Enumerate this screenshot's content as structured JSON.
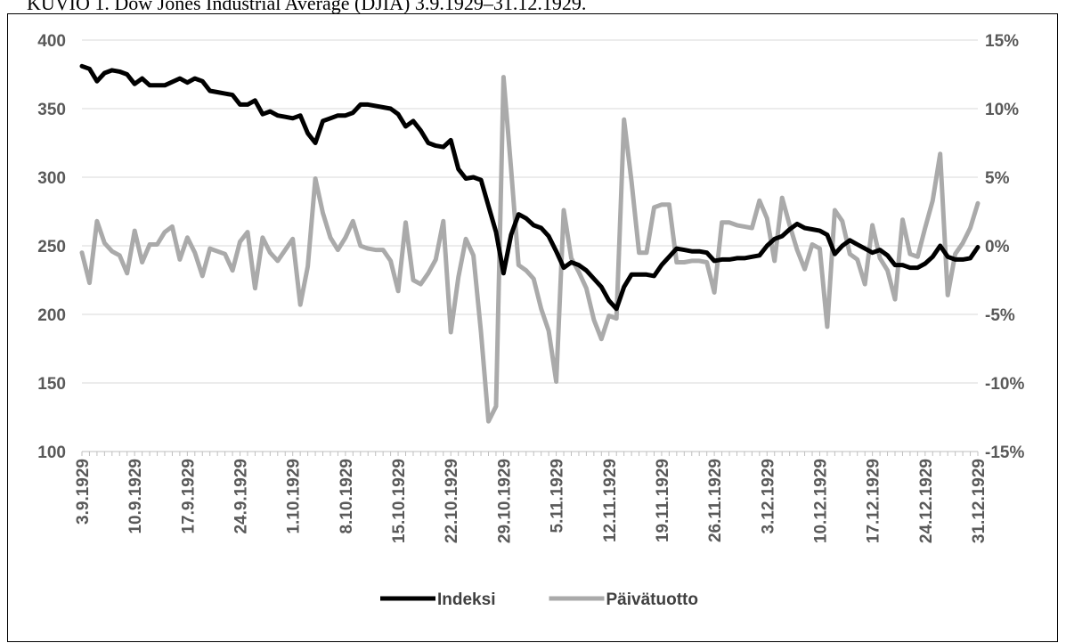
{
  "caption": "KUVIO 1. Dow Jones Industrial Average (DJIA) 3.9.1929–31.12.1929.",
  "chart_data": {
    "type": "line",
    "title": "",
    "xlabel": "",
    "ylabel": "",
    "y_left_ticks": [
      "400",
      "350",
      "300",
      "250",
      "200",
      "150",
      "100"
    ],
    "y_left_lim": [
      100,
      400
    ],
    "y_right_ticks": [
      "15%",
      "10%",
      "5%",
      "0%",
      "-5%",
      "-10%",
      "-15%"
    ],
    "y_right_lim": [
      -15,
      15
    ],
    "x_range": [
      0,
      119
    ],
    "x_ticks": [
      {
        "label": "3.9.1929",
        "x": 0
      },
      {
        "label": "10.9.1929",
        "x": 7
      },
      {
        "label": "17.9.1929",
        "x": 14
      },
      {
        "label": "24.9.1929",
        "x": 21
      },
      {
        "label": "1.10.1929",
        "x": 28
      },
      {
        "label": "8.10.1929",
        "x": 35
      },
      {
        "label": "15.10.1929",
        "x": 42
      },
      {
        "label": "22.10.1929",
        "x": 49
      },
      {
        "label": "29.10.1929",
        "x": 56
      },
      {
        "label": "5.11.1929",
        "x": 63
      },
      {
        "label": "12.11.1929",
        "x": 70
      },
      {
        "label": "19.11.1929",
        "x": 77
      },
      {
        "label": "26.11.1929",
        "x": 84
      },
      {
        "label": "3.12.1929",
        "x": 91
      },
      {
        "label": "10.12.1929",
        "x": 98
      },
      {
        "label": "17.12.1929",
        "x": 105
      },
      {
        "label": "24.12.1929",
        "x": 112
      },
      {
        "label": "31.12.1929",
        "x": 119
      }
    ],
    "grid": true,
    "legend_position": "bottom",
    "series": [
      {
        "name": "Indeksi",
        "axis": "left",
        "color": "#000000",
        "points": [
          [
            0,
            381
          ],
          [
            1,
            379
          ],
          [
            2,
            370
          ],
          [
            3,
            376
          ],
          [
            4,
            378
          ],
          [
            5,
            377
          ],
          [
            6,
            375
          ],
          [
            7,
            368
          ],
          [
            8,
            372
          ],
          [
            9,
            367
          ],
          [
            10,
            367
          ],
          [
            11,
            367
          ],
          [
            13,
            372
          ],
          [
            14,
            369
          ],
          [
            15,
            372
          ],
          [
            16,
            370
          ],
          [
            17,
            363
          ],
          [
            18,
            362
          ],
          [
            20,
            360
          ],
          [
            21,
            353
          ],
          [
            22,
            353
          ],
          [
            23,
            356
          ],
          [
            24,
            346
          ],
          [
            25,
            348
          ],
          [
            26,
            345
          ],
          [
            27,
            344
          ],
          [
            28,
            343
          ],
          [
            29,
            345
          ],
          [
            30,
            332
          ],
          [
            31,
            325
          ],
          [
            32,
            341
          ],
          [
            33,
            343
          ],
          [
            34,
            345
          ],
          [
            35,
            345
          ],
          [
            36,
            347
          ],
          [
            37,
            353
          ],
          [
            38,
            353
          ],
          [
            39,
            352
          ],
          [
            40,
            351
          ],
          [
            41,
            350
          ],
          [
            42,
            346
          ],
          [
            43,
            337
          ],
          [
            44,
            341
          ],
          [
            45,
            334
          ],
          [
            46,
            325
          ],
          [
            47,
            323
          ],
          [
            48,
            322
          ],
          [
            49,
            327
          ],
          [
            50,
            306
          ],
          [
            51,
            299
          ],
          [
            52,
            300
          ],
          [
            53,
            298
          ],
          [
            54,
            279
          ],
          [
            55,
            260
          ],
          [
            56,
            230
          ],
          [
            57,
            258
          ],
          [
            58,
            273
          ],
          [
            59,
            270
          ],
          [
            60,
            265
          ],
          [
            61,
            263
          ],
          [
            62,
            257
          ],
          [
            63,
            246
          ],
          [
            64,
            234
          ],
          [
            65,
            238
          ],
          [
            66,
            236
          ],
          [
            67,
            232
          ],
          [
            68,
            226
          ],
          [
            69,
            220
          ],
          [
            70,
            210
          ],
          [
            71,
            204
          ],
          [
            72,
            220
          ],
          [
            73,
            229
          ],
          [
            74,
            229
          ],
          [
            75,
            229
          ],
          [
            76,
            228
          ],
          [
            77,
            236
          ],
          [
            78,
            242
          ],
          [
            79,
            248
          ],
          [
            80,
            247
          ],
          [
            81,
            246
          ],
          [
            82,
            246
          ],
          [
            83,
            245
          ],
          [
            84,
            239
          ],
          [
            85,
            240
          ],
          [
            86,
            240
          ],
          [
            87,
            241
          ],
          [
            88,
            241
          ],
          [
            89,
            242
          ],
          [
            90,
            243
          ],
          [
            91,
            250
          ],
          [
            92,
            255
          ],
          [
            93,
            257
          ],
          [
            94,
            262
          ],
          [
            95,
            266
          ],
          [
            96,
            263
          ],
          [
            97,
            262
          ],
          [
            98,
            261
          ],
          [
            99,
            258
          ],
          [
            100,
            244
          ],
          [
            101,
            250
          ],
          [
            102,
            254
          ],
          [
            103,
            251
          ],
          [
            104,
            248
          ],
          [
            105,
            245
          ],
          [
            106,
            247
          ],
          [
            107,
            243
          ],
          [
            108,
            236
          ],
          [
            109,
            236
          ],
          [
            110,
            234
          ],
          [
            111,
            234
          ],
          [
            112,
            237
          ],
          [
            113,
            242
          ],
          [
            114,
            250
          ],
          [
            115,
            242
          ],
          [
            116,
            240
          ],
          [
            117,
            240
          ],
          [
            118,
            241
          ],
          [
            119,
            249
          ]
        ]
      },
      {
        "name": "Päivätuotto",
        "axis": "right",
        "color": "#aaaaaa",
        "points": [
          [
            0,
            -0.5
          ],
          [
            1,
            -2.7
          ],
          [
            2,
            1.8
          ],
          [
            3,
            0.2
          ],
          [
            4,
            -0.4
          ],
          [
            5,
            -0.7
          ],
          [
            6,
            -2.0
          ],
          [
            7,
            1.1
          ],
          [
            8,
            -1.2
          ],
          [
            9,
            0.1
          ],
          [
            10,
            0.1
          ],
          [
            11,
            1.0
          ],
          [
            12,
            1.4
          ],
          [
            13,
            -1.0
          ],
          [
            14,
            0.6
          ],
          [
            15,
            -0.5
          ],
          [
            16,
            -2.2
          ],
          [
            17,
            -0.2
          ],
          [
            18,
            -0.4
          ],
          [
            19,
            -0.6
          ],
          [
            20,
            -1.8
          ],
          [
            21,
            0.3
          ],
          [
            22,
            1.0
          ],
          [
            23,
            -3.1
          ],
          [
            24,
            0.6
          ],
          [
            25,
            -0.5
          ],
          [
            26,
            -1.1
          ],
          [
            27,
            -0.3
          ],
          [
            28,
            0.5
          ],
          [
            29,
            -4.3
          ],
          [
            30,
            -1.5
          ],
          [
            31,
            4.9
          ],
          [
            32,
            2.4
          ],
          [
            33,
            0.6
          ],
          [
            34,
            -0.3
          ],
          [
            35,
            0.6
          ],
          [
            36,
            1.8
          ],
          [
            37,
            0.0
          ],
          [
            38,
            -0.2
          ],
          [
            39,
            -0.3
          ],
          [
            40,
            -0.3
          ],
          [
            41,
            -1.1
          ],
          [
            42,
            -3.3
          ],
          [
            43,
            1.7
          ],
          [
            44,
            -2.5
          ],
          [
            45,
            -2.8
          ],
          [
            46,
            -2.0
          ],
          [
            47,
            -1.0
          ],
          [
            48,
            1.8
          ],
          [
            49,
            -6.3
          ],
          [
            50,
            -2.3
          ],
          [
            51,
            0.5
          ],
          [
            52,
            -0.7
          ],
          [
            53,
            -6.3
          ],
          [
            54,
            -12.8
          ],
          [
            55,
            -11.7
          ],
          [
            56,
            12.3
          ],
          [
            57,
            5.6
          ],
          [
            58,
            -1.4
          ],
          [
            59,
            -1.8
          ],
          [
            60,
            -2.4
          ],
          [
            61,
            -4.6
          ],
          [
            62,
            -6.2
          ],
          [
            63,
            -9.9
          ],
          [
            64,
            2.6
          ],
          [
            65,
            -0.9
          ],
          [
            66,
            -1.9
          ],
          [
            67,
            -3.1
          ],
          [
            68,
            -5.4
          ],
          [
            69,
            -6.8
          ],
          [
            70,
            -5.1
          ],
          [
            71,
            -5.3
          ],
          [
            72,
            9.2
          ],
          [
            73,
            4.7
          ],
          [
            74,
            -0.5
          ],
          [
            75,
            -0.5
          ],
          [
            76,
            2.8
          ],
          [
            77,
            3.0
          ],
          [
            78,
            3.0
          ],
          [
            79,
            -1.2
          ],
          [
            80,
            -1.2
          ],
          [
            81,
            -1.1
          ],
          [
            82,
            -1.1
          ],
          [
            83,
            -1.2
          ],
          [
            84,
            -3.4
          ],
          [
            85,
            1.7
          ],
          [
            86,
            1.7
          ],
          [
            87,
            1.5
          ],
          [
            88,
            1.4
          ],
          [
            89,
            1.3
          ],
          [
            90,
            3.3
          ],
          [
            91,
            2.0
          ],
          [
            92,
            -1.1
          ],
          [
            93,
            3.5
          ],
          [
            94,
            1.5
          ],
          [
            95,
            -0.3
          ],
          [
            96,
            -1.7
          ],
          [
            97,
            0.1
          ],
          [
            98,
            -0.2
          ],
          [
            99,
            -5.9
          ],
          [
            100,
            2.6
          ],
          [
            101,
            1.8
          ],
          [
            102,
            -0.6
          ],
          [
            103,
            -1.0
          ],
          [
            104,
            -2.8
          ],
          [
            105,
            1.5
          ],
          [
            106,
            -0.9
          ],
          [
            107,
            -1.8
          ],
          [
            108,
            -3.9
          ],
          [
            109,
            1.9
          ],
          [
            110,
            -0.6
          ],
          [
            111,
            -0.8
          ],
          [
            112,
            1.3
          ],
          [
            113,
            3.3
          ],
          [
            114,
            6.7
          ],
          [
            115,
            -3.6
          ],
          [
            116,
            -0.6
          ],
          [
            117,
            0.2
          ],
          [
            118,
            1.3
          ],
          [
            119,
            3.1
          ]
        ]
      }
    ]
  }
}
